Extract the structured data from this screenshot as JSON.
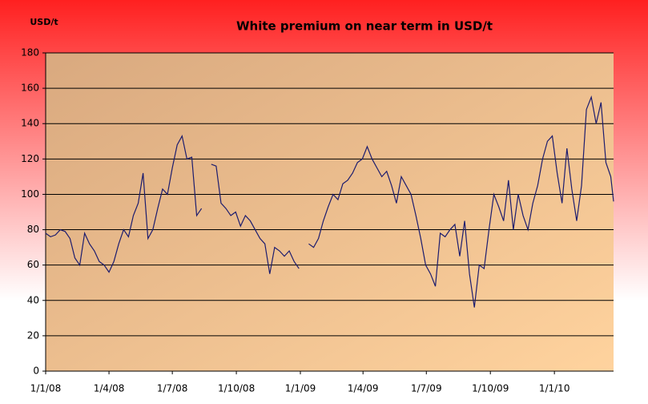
{
  "chart_data": {
    "type": "line",
    "title": "White premium on near term in USD/t",
    "y_label": "USD/t",
    "x": [
      "2008-01-01",
      "2008-01-08",
      "2008-01-15",
      "2008-01-22",
      "2008-01-29",
      "2008-02-05",
      "2008-02-12",
      "2008-02-19",
      "2008-02-26",
      "2008-03-04",
      "2008-03-11",
      "2008-03-18",
      "2008-03-25",
      "2008-04-01",
      "2008-04-08",
      "2008-04-15",
      "2008-04-22",
      "2008-04-29",
      "2008-05-06",
      "2008-05-13",
      "2008-05-20",
      "2008-05-27",
      "2008-06-03",
      "2008-06-10",
      "2008-06-17",
      "2008-06-24",
      "2008-07-01",
      "2008-07-08",
      "2008-07-15",
      "2008-07-22",
      "2008-07-29",
      "2008-08-05",
      "2008-08-12",
      "2008-08-19",
      "2008-08-26",
      "2008-09-02",
      "2008-09-09",
      "2008-09-16",
      "2008-09-23",
      "2008-09-30",
      "2008-10-07",
      "2008-10-14",
      "2008-10-21",
      "2008-10-28",
      "2008-11-04",
      "2008-11-11",
      "2008-11-18",
      "2008-11-25",
      "2008-12-02",
      "2008-12-09",
      "2008-12-16",
      "2008-12-23",
      "2008-12-30",
      "2009-01-06",
      "2009-01-13",
      "2009-01-20",
      "2009-01-27",
      "2009-02-03",
      "2009-02-10",
      "2009-02-17",
      "2009-02-24",
      "2009-03-03",
      "2009-03-10",
      "2009-03-17",
      "2009-03-24",
      "2009-03-31",
      "2009-04-07",
      "2009-04-14",
      "2009-04-21",
      "2009-04-28",
      "2009-05-05",
      "2009-05-12",
      "2009-05-19",
      "2009-05-26",
      "2009-06-02",
      "2009-06-09",
      "2009-06-16",
      "2009-06-23",
      "2009-06-30",
      "2009-07-07",
      "2009-07-14",
      "2009-07-21",
      "2009-07-28",
      "2009-08-04",
      "2009-08-11",
      "2009-08-18",
      "2009-08-25",
      "2009-09-01",
      "2009-09-08",
      "2009-09-15",
      "2009-09-22",
      "2009-09-29",
      "2009-10-06",
      "2009-10-13",
      "2009-10-20",
      "2009-10-27",
      "2009-11-03",
      "2009-11-10",
      "2009-11-17",
      "2009-11-24",
      "2009-12-01",
      "2009-12-08",
      "2009-12-15",
      "2009-12-22",
      "2009-12-29",
      "2010-01-05",
      "2010-01-12",
      "2010-01-19",
      "2010-01-26",
      "2010-02-02",
      "2010-02-09",
      "2010-02-16",
      "2010-02-23",
      "2010-03-02",
      "2010-03-09",
      "2010-03-16",
      "2010-03-23",
      "2010-03-27"
    ],
    "series": [
      {
        "color": "#1c1c6e",
        "values": [
          78,
          76,
          77,
          80,
          79,
          75,
          64,
          60,
          78,
          72,
          68,
          62,
          60,
          56,
          62,
          72,
          80,
          76,
          88,
          95,
          112,
          75,
          80,
          92,
          103,
          100,
          115,
          128,
          133,
          120,
          121,
          88,
          92,
          null,
          117,
          116,
          95,
          92,
          88,
          90,
          82,
          88,
          85,
          80,
          75,
          72,
          55,
          70,
          68,
          65,
          68,
          62,
          58,
          null,
          72,
          70,
          75,
          85,
          93,
          100,
          97,
          106,
          108,
          112,
          118,
          120,
          127,
          120,
          115,
          110,
          113,
          105,
          95,
          110,
          105,
          100,
          88,
          75,
          60,
          55,
          48,
          78,
          76,
          80,
          83,
          65,
          85,
          55,
          36,
          60,
          58,
          80,
          100,
          93,
          85,
          108,
          80,
          100,
          88,
          80,
          95,
          105,
          120,
          130,
          133,
          112,
          95,
          126,
          103,
          85,
          105,
          148,
          155,
          140,
          152,
          118,
          110,
          96
        ]
      }
    ],
    "xlim": [
      "2008-01-01",
      "2010-03-27"
    ],
    "xticks": [
      {
        "value": "2008-01-01",
        "label": "1/1/08"
      },
      {
        "value": "2008-04-01",
        "label": "1/4/08"
      },
      {
        "value": "2008-07-01",
        "label": "1/7/08"
      },
      {
        "value": "2008-10-01",
        "label": "1/10/08"
      },
      {
        "value": "2009-01-01",
        "label": "1/1/09"
      },
      {
        "value": "2009-04-01",
        "label": "1/4/09"
      },
      {
        "value": "2009-07-01",
        "label": "1/7/09"
      },
      {
        "value": "2009-10-01",
        "label": "1/10/09"
      },
      {
        "value": "2010-01-01",
        "label": "1/1/10"
      }
    ],
    "ylim": [
      0,
      180
    ],
    "yticks": [
      0,
      20,
      40,
      60,
      80,
      100,
      120,
      140,
      160,
      180
    ],
    "grid": true
  }
}
